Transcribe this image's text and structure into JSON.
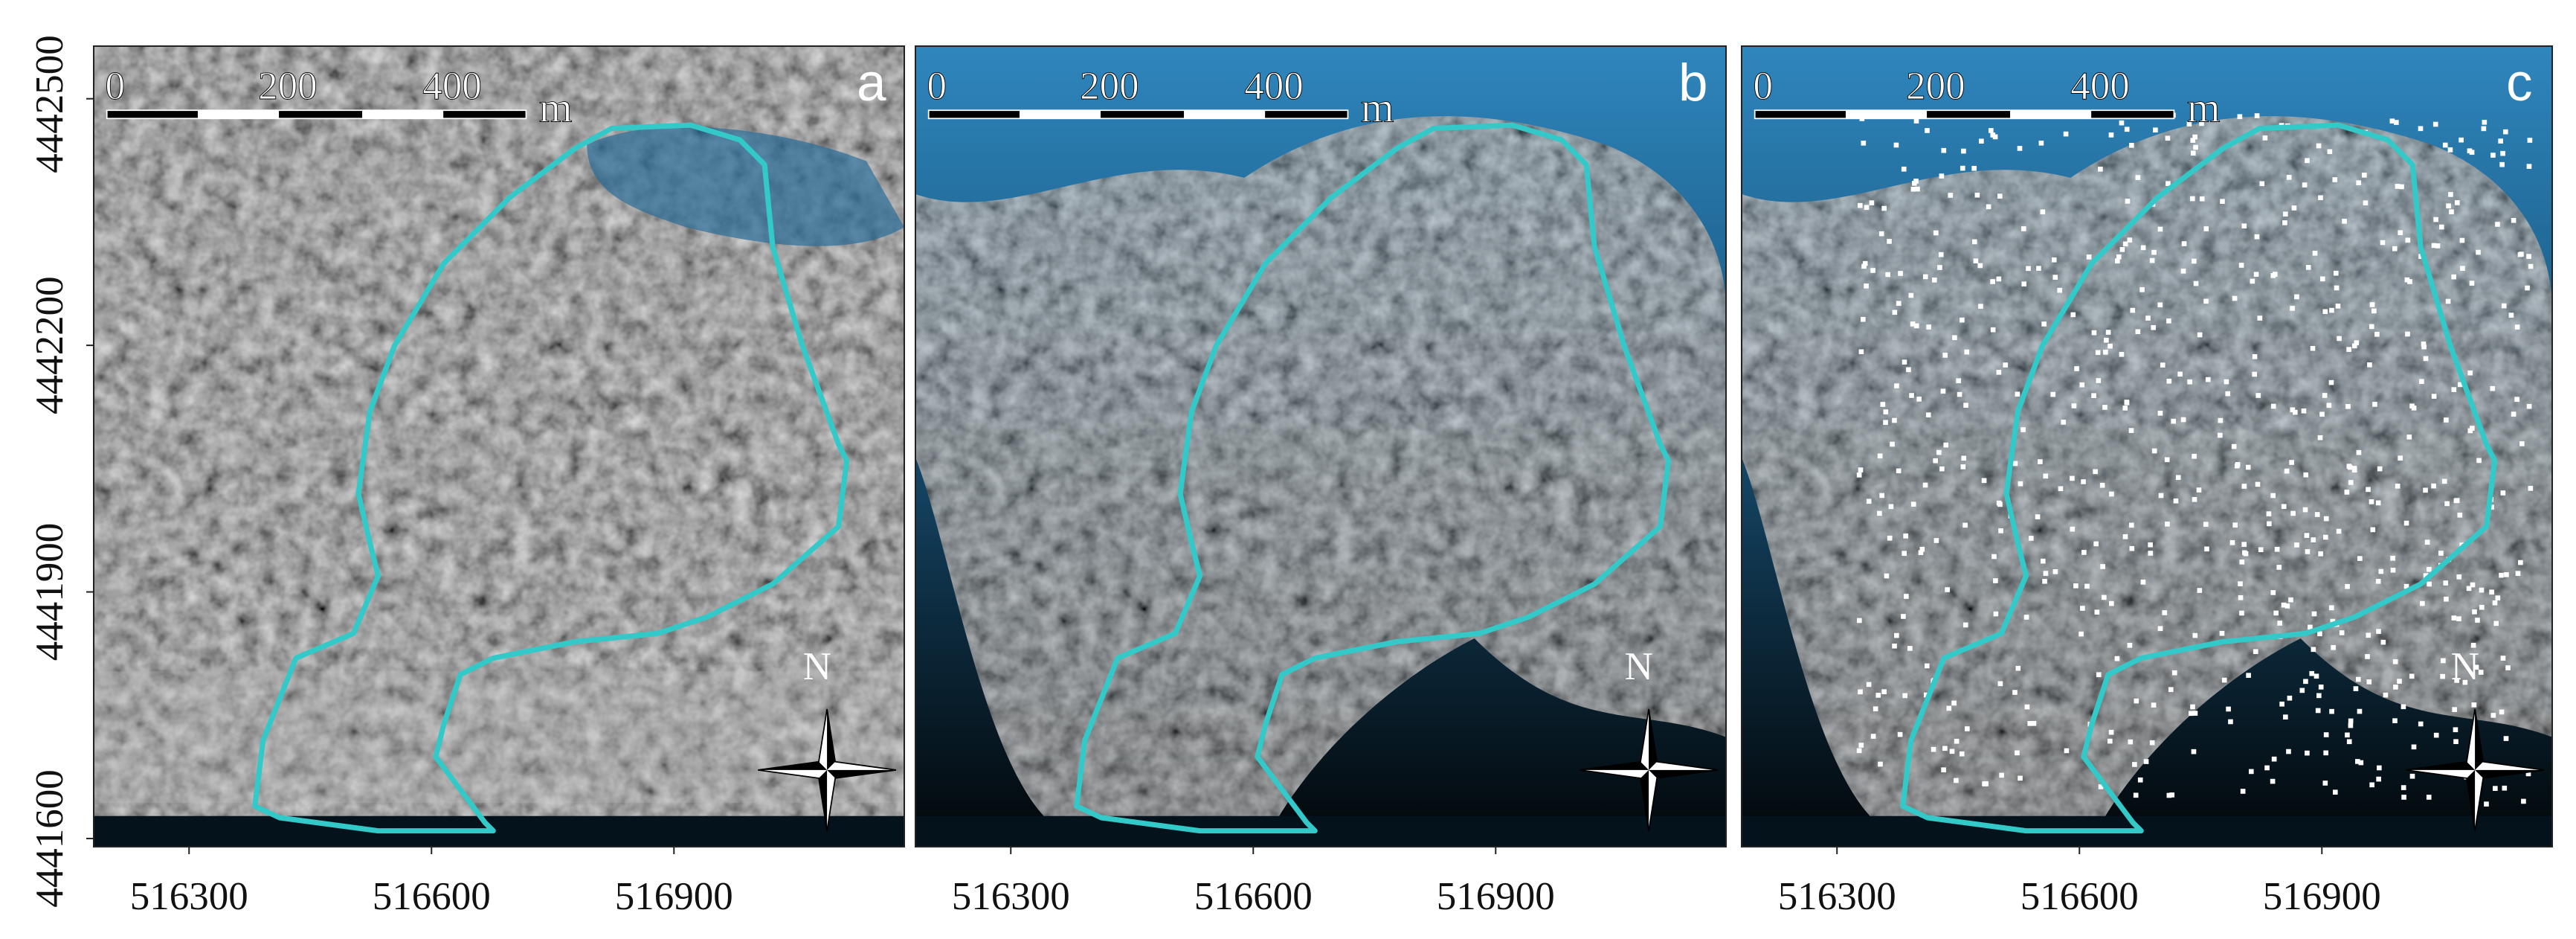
{
  "panels": [
    {
      "label": "a"
    },
    {
      "label": "b"
    },
    {
      "label": "c"
    }
  ],
  "scale_bar": {
    "labels": [
      "0",
      "200",
      "400"
    ],
    "unit": "m"
  },
  "north": "N",
  "axes": {
    "xlim": [
      516182,
      517185
    ],
    "ylim": [
      4441590,
      4442564
    ],
    "xticks": [
      516300,
      516600,
      516900
    ],
    "yticks": [
      4442500,
      4442200,
      4441900,
      4441600
    ]
  }
}
